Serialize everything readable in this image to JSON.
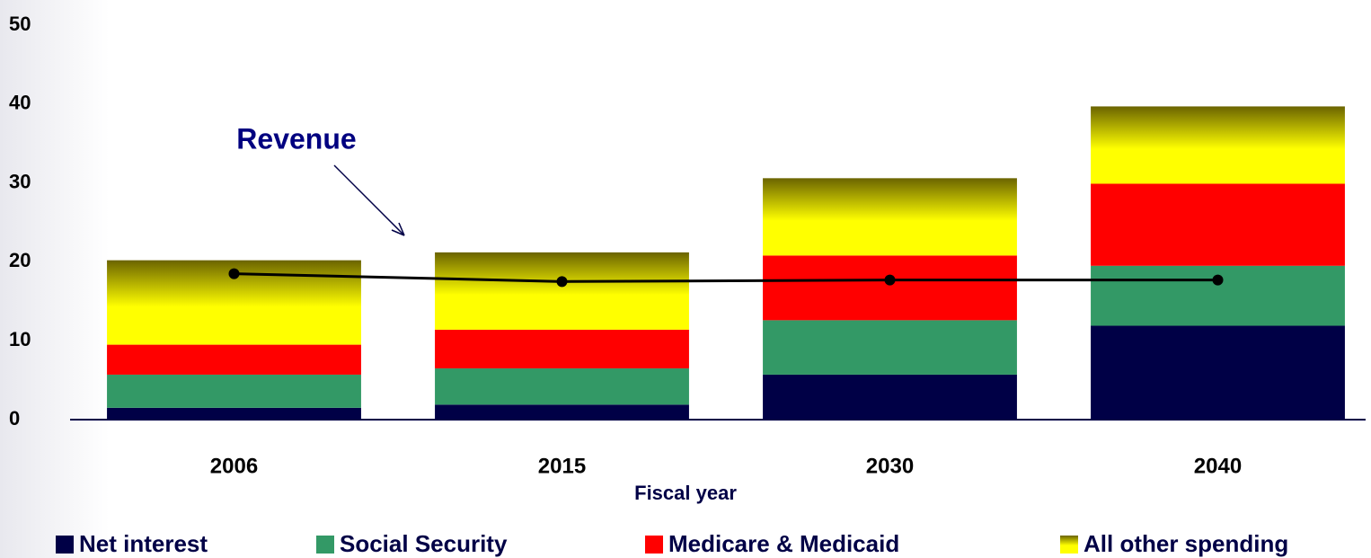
{
  "chart_data": {
    "type": "bar",
    "stacked": true,
    "x_label": "Fiscal year",
    "categories": [
      "2006",
      "2015",
      "2030",
      "2040"
    ],
    "series": [
      {
        "name": "Net interest",
        "color": "#000046",
        "values": [
          1.5,
          1.9,
          5.7,
          11.9
        ]
      },
      {
        "name": "Social Security",
        "color": "#339966",
        "values": [
          4.2,
          4.6,
          6.9,
          7.6
        ]
      },
      {
        "name": "Medicare & Medicaid",
        "color": "#ff0000",
        "values": [
          3.8,
          4.9,
          8.2,
          10.4
        ]
      },
      {
        "name": "All other spending",
        "color": "#ffff00",
        "values": [
          10.7,
          9.8,
          9.8,
          9.8
        ]
      }
    ],
    "line": {
      "name": "Revenue",
      "color": "#000000",
      "values": [
        18.5,
        17.5,
        17.7,
        17.7
      ]
    },
    "ylim": [
      0,
      50
    ],
    "yticks": [
      0,
      10,
      20,
      30,
      40,
      50
    ],
    "grid": false
  }
}
